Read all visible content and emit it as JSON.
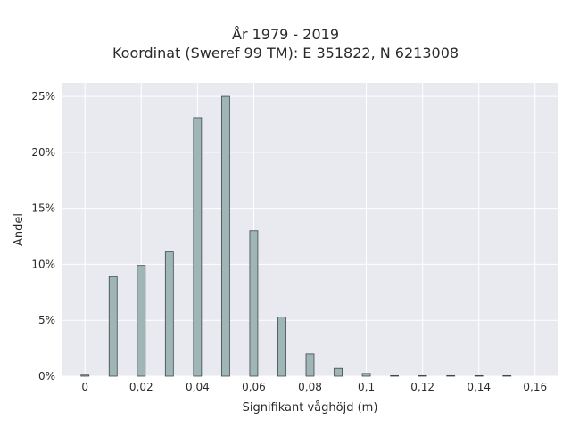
{
  "title_line_1": "År 1979 - 2019",
  "title_line_2": "Koordinat (Sweref 99 TM): E 351822, N 6213008",
  "chart_data": {
    "type": "bar",
    "xlabel": "Signifikant våghöjd (m)",
    "ylabel": "Andel",
    "x": [
      0,
      0.01,
      0.02,
      0.03,
      0.04,
      0.05,
      0.06,
      0.07,
      0.08,
      0.09,
      0.1,
      0.11,
      0.12,
      0.13,
      0.14,
      0.15
    ],
    "values": [
      0.1,
      8.9,
      9.9,
      11.1,
      23.1,
      25.0,
      13.0,
      5.3,
      2.0,
      0.7,
      0.25,
      0.05,
      0.05,
      0.05,
      0.05,
      0.05
    ],
    "xlim": [
      -0.008,
      0.168
    ],
    "ylim": [
      0,
      26.2
    ],
    "xticks": [
      0,
      0.02,
      0.04,
      0.06,
      0.08,
      0.1,
      0.12,
      0.14,
      0.16
    ],
    "xtick_labels": [
      "0",
      "0,02",
      "0,04",
      "0,06",
      "0,08",
      "0,1",
      "0,12",
      "0,14",
      "0,16"
    ],
    "yticks": [
      0,
      5,
      10,
      15,
      20,
      25
    ],
    "ytick_labels": [
      "0%",
      "5%",
      "10%",
      "15%",
      "20%",
      "25%"
    ],
    "grid": true,
    "bar_color": "#9fb5b6",
    "bar_edge_color": "#3d4a4a",
    "plot_background": "#e9e9f0",
    "grid_color": "#ffffff"
  }
}
